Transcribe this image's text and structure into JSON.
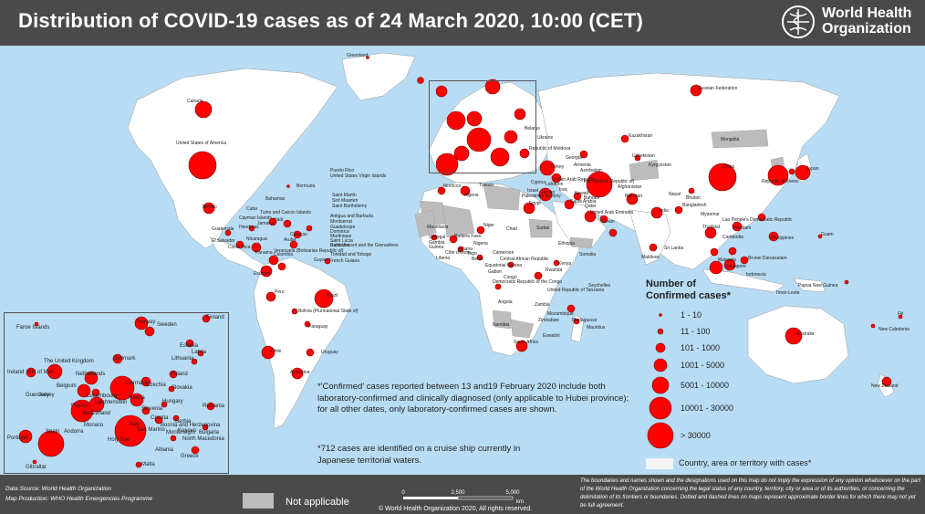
{
  "title": "Distribution of COVID-19  cases as of 24 March 2020, 10:00 (CET)",
  "who": {
    "line1": "World Health",
    "line2": "Organization"
  },
  "map_labels": [
    "Greenland",
    "Canada",
    "United States of America",
    "Russian Federation",
    "Kazakhstan",
    "Mongolia",
    "China",
    "Japan",
    "Republic of Korea",
    "Bermuda",
    "Puerto Rico",
    "United States Virgin Islands",
    "Bahamas",
    "Cuba",
    "Turks and Caicos Islands",
    "Cayman Islands",
    "Saint Martin",
    "Sint Maarten",
    "Saint Barthélemy",
    "Antigua and Barbuda",
    "Montserrat",
    "Guadeloupe",
    "Dominica",
    "Martinique",
    "Saint Lucia",
    "Barbados",
    "Saint Vincent and the Grenadines",
    "Trinidad and Tobago",
    "Curaçao",
    "Aruba",
    "Mexico",
    "Guatemala",
    "El Salvador",
    "Honduras",
    "Nicaragua",
    "Costa Rica",
    "Panama",
    "Jamaica",
    "Haiti",
    "Colombia",
    "Venezuela (Bolivarian Republic of)",
    "Guyana",
    "French Guiana",
    "Ecuador",
    "Peru",
    "Brazil",
    "Bolivia (Plurinational State of)",
    "Paraguay",
    "Chile",
    "Argentina",
    "Uruguay",
    "Morocco",
    "Algeria",
    "Tunisia",
    "Egypt",
    "Senegal",
    "Gambia",
    "Mauritania",
    "Burkina Faso",
    "Niger",
    "Nigeria",
    "Chad",
    "Sudan",
    "Ethiopia",
    "Somalia",
    "Kenya",
    "United Republic of Tanzania",
    "Cameroon",
    "Central African Republic",
    "Equatorial Guinea",
    "Gabon",
    "Congo",
    "Democratic Republic of the Congo",
    "Angola",
    "Zambia",
    "Namibia",
    "Zimbabwe",
    "Mozambique",
    "Madagascar",
    "Mauritius",
    "Seychelles",
    "South Africa",
    "Eswatini",
    "Rwanda",
    "Saudi Arabia",
    "United Arab Emirates",
    "Oman",
    "Qatar",
    "Bahrain",
    "Kuwait",
    "Iraq",
    "Iran (Islamic Republic of)",
    "Afghanistan",
    "Pakistan",
    "India",
    "Nepal",
    "Bhutan",
    "Bangladesh",
    "Sri Lanka",
    "Maldives",
    "Myanmar",
    "Thailand",
    "Cambodia",
    "Viet Nam",
    "Lao People's Democratic Republic",
    "Malaysia",
    "Singapore",
    "Indonesia",
    "Philippines",
    "Brunei Darussalam",
    "Timor-Leste",
    "Papua New Guinea",
    "Guam",
    "Australia",
    "New Zealand",
    "Fiji",
    "New Caledonia",
    "Uzbekistan",
    "Kyrgyzstan",
    "Georgia",
    "Armenia",
    "Azerbaijan",
    "Turkey",
    "Syrian Arab Republic",
    "Lebanon",
    "Jordan",
    "Israel",
    "Cyprus",
    "Republic of Moldova",
    "Ukraine",
    "Belarus",
    "Faroe Islands",
    "Norway",
    "Sweden",
    "Finland",
    "Estonia",
    "Latvia",
    "Lithuania",
    "Denmark",
    "The United Kingdom",
    "Ireland",
    "Isle of Man",
    "Jersey",
    "Guernsey",
    "Netherlands",
    "Belgium",
    "Luxembourg",
    "France",
    "Germany",
    "Poland",
    "Czechia",
    "Slovakia",
    "Austria",
    "Hungary",
    "Switzerland",
    "Liechtenstein",
    "Italy",
    "San Marino",
    "Holy See",
    "Slovenia",
    "Croatia",
    "Bosnia and Herzegovina",
    "Serbia",
    "Montenegro",
    "Kosovo",
    "Albania",
    "North Macedonia",
    "Greece",
    "Bulgaria",
    "Romania",
    "Monaco",
    "Andorra",
    "Spain",
    "Portugal",
    "Gibraltar",
    "Malta",
    "Palestinian territory",
    "Côte d’Ivoire",
    "Ghana",
    "Togo",
    "Benin",
    "Liberia",
    "Guinea"
  ],
  "legend": {
    "title": "Number of Confirmed cases*",
    "classes": [
      "1 - 10",
      "11 - 100",
      "101 - 1000",
      "1001 - 5000",
      "5001 - 10000",
      "10001 - 30000",
      "> 30000"
    ],
    "area_label": "Country, area or territory with cases*",
    "na_label": "Not applicable"
  },
  "notes": {
    "note1": "*'Confirmed' cases reported between 13 and19 February 2020 include both laboratory-confirmed and clinically diagnosed (only applicable to Hubei province); for all other dates, only laboratory-confirmed cases are shown.",
    "note2": "*712 cases are identified on a cruise ship currently in Japanese territorial waters."
  },
  "footer": {
    "data_source": "Data Source: World Health Organization",
    "map_production": "Map Production: WHO Health Emergencies Programme",
    "scale_ticks": [
      "0",
      "2,500",
      "5,000"
    ],
    "scale_unit": "km",
    "copyright": "© World Health Organization  2020,  All rights reserved.",
    "disclaimer": "The boundaries and names shown and the designations used on this map do not imply the expression of any opinion whatsoever on the part of the World Health Organization concerning the legal status of any country, territory, city or area or of its authorities, or concerning the delimitation of its frontiers or boundaries. Dotted and dashed lines on maps represent approximate border lines for which there may not yet be full agreement."
  },
  "colors": {
    "bubble": "#ff0000",
    "ocean": "#b7dcf3",
    "land": "#ffffff",
    "na": "#bcbcbc",
    "header": "#4a4a4a"
  }
}
